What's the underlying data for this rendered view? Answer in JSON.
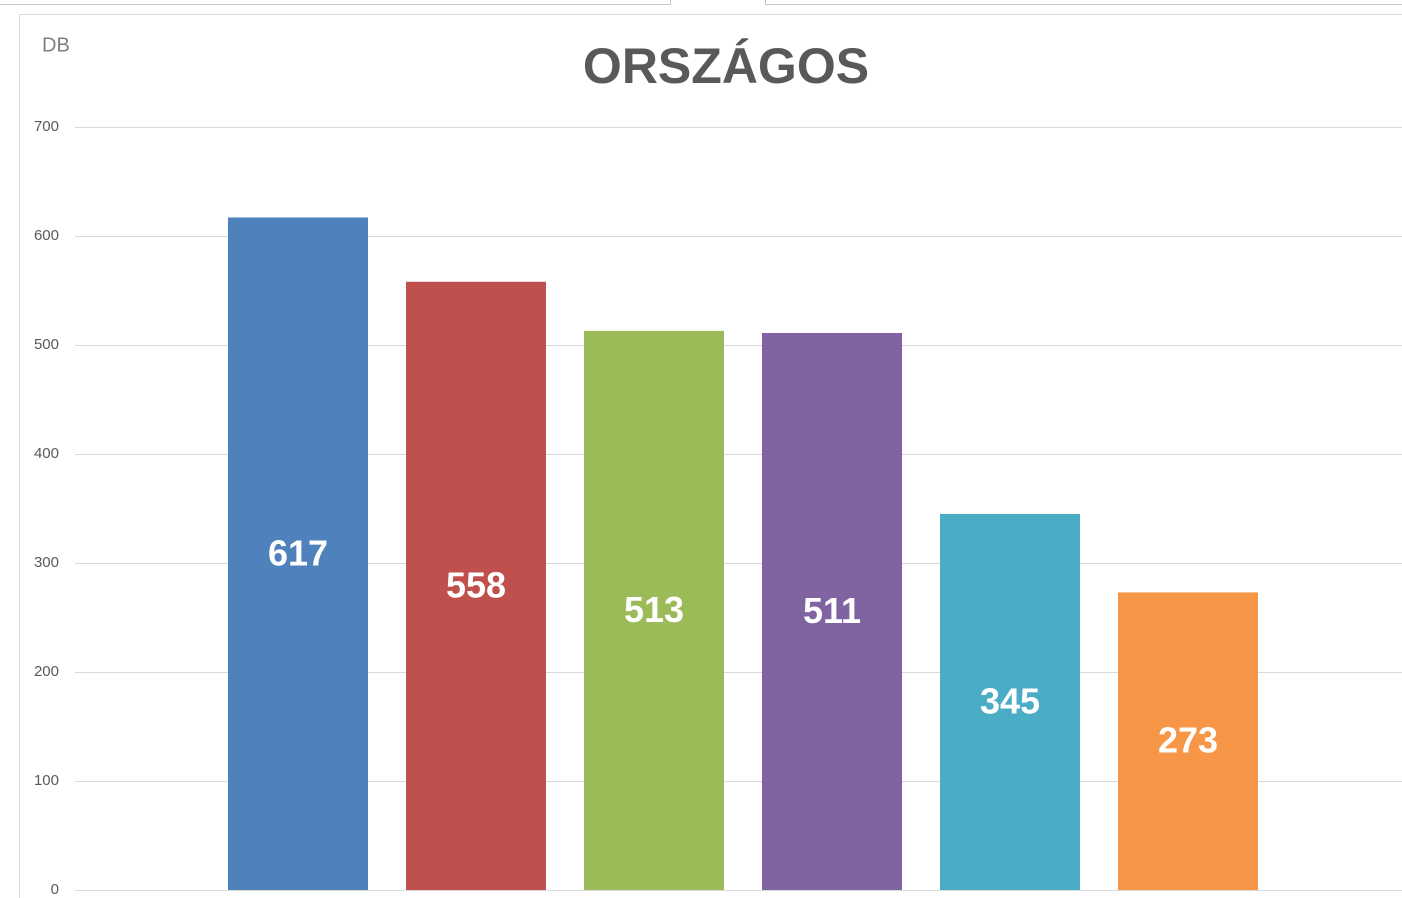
{
  "chart_data": {
    "type": "bar",
    "title": "ORSZÁGOS",
    "y_label": "DB",
    "values": [
      617,
      558,
      513,
      511,
      345,
      273
    ],
    "colors": [
      "#4f81bd",
      "#c0504d",
      "#9bbb59",
      "#8064a2",
      "#4bacc6",
      "#f79646"
    ],
    "ylim": [
      0,
      700
    ],
    "yticks": [
      0,
      100,
      200,
      300,
      400,
      500,
      600,
      700
    ],
    "grid": true
  }
}
